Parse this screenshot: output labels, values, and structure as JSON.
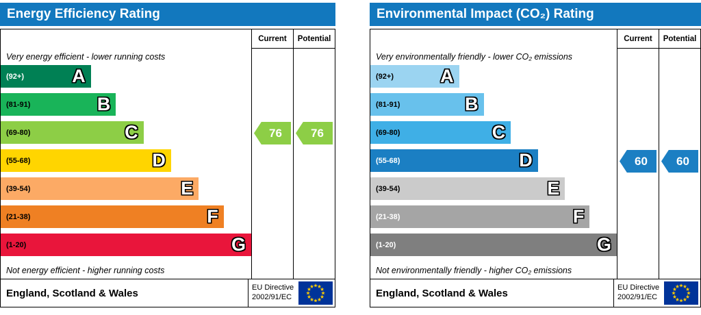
{
  "eu_flag": {
    "background": "#003399",
    "stars": "#ffcc00"
  },
  "chart_data": [
    {
      "type": "bar",
      "title": "Energy Efficiency Rating",
      "header_color": "#1278be",
      "col_current": "Current",
      "col_potential": "Potential",
      "top_note": "Very energy efficient - lower running costs",
      "bottom_note": "Not energy efficient - higher running costs",
      "bands": [
        {
          "letter": "A",
          "range": "(92+)",
          "color": "#008054",
          "width_pct": 36,
          "label_color": "#ffffff"
        },
        {
          "letter": "B",
          "range": "(81-91)",
          "color": "#19b459",
          "width_pct": 46,
          "label_color": "#000000"
        },
        {
          "letter": "C",
          "range": "(69-80)",
          "color": "#8dce46",
          "width_pct": 57,
          "label_color": "#000000"
        },
        {
          "letter": "D",
          "range": "(55-68)",
          "color": "#ffd500",
          "width_pct": 68,
          "label_color": "#000000"
        },
        {
          "letter": "E",
          "range": "(39-54)",
          "color": "#fcaa65",
          "width_pct": 79,
          "label_color": "#000000"
        },
        {
          "letter": "F",
          "range": "(21-38)",
          "color": "#ef8023",
          "width_pct": 89,
          "label_color": "#000000"
        },
        {
          "letter": "G",
          "range": "(1-20)",
          "color": "#e9153b",
          "width_pct": 100,
          "label_color": "#000000"
        }
      ],
      "current": {
        "value": "76",
        "band_index": 2,
        "color": "#8dce46"
      },
      "potential": {
        "value": "76",
        "band_index": 2,
        "color": "#8dce46"
      },
      "footer_region": "England, Scotland & Wales",
      "directive_line1": "EU Directive",
      "directive_line2": "2002/91/EC"
    },
    {
      "type": "bar",
      "title": "Environmental Impact (CO₂) Rating",
      "header_color": "#1278be",
      "col_current": "Current",
      "col_potential": "Potential",
      "top_note": "Very environmentally friendly - lower CO₂ emissions",
      "bottom_note": "Not environmentally friendly - higher CO₂ emissions",
      "bands": [
        {
          "letter": "A",
          "range": "(92+)",
          "color": "#9bd4f1",
          "width_pct": 36,
          "label_color": "#000000"
        },
        {
          "letter": "B",
          "range": "(81-91)",
          "color": "#68c1ec",
          "width_pct": 46,
          "label_color": "#000000"
        },
        {
          "letter": "C",
          "range": "(69-80)",
          "color": "#3fafe6",
          "width_pct": 57,
          "label_color": "#000000"
        },
        {
          "letter": "D",
          "range": "(55-68)",
          "color": "#1b7fc3",
          "width_pct": 68,
          "label_color": "#ffffff"
        },
        {
          "letter": "E",
          "range": "(39-54)",
          "color": "#cbcbcb",
          "width_pct": 79,
          "label_color": "#000000"
        },
        {
          "letter": "F",
          "range": "(21-38)",
          "color": "#a5a5a5",
          "width_pct": 89,
          "label_color": "#ffffff"
        },
        {
          "letter": "G",
          "range": "(1-20)",
          "color": "#7f7f7f",
          "width_pct": 100,
          "label_color": "#ffffff"
        }
      ],
      "current": {
        "value": "60",
        "band_index": 3,
        "color": "#1b7fc3"
      },
      "potential": {
        "value": "60",
        "band_index": 3,
        "color": "#1b7fc3"
      },
      "footer_region": "England, Scotland & Wales",
      "directive_line1": "EU Directive",
      "directive_line2": "2002/91/EC"
    }
  ]
}
